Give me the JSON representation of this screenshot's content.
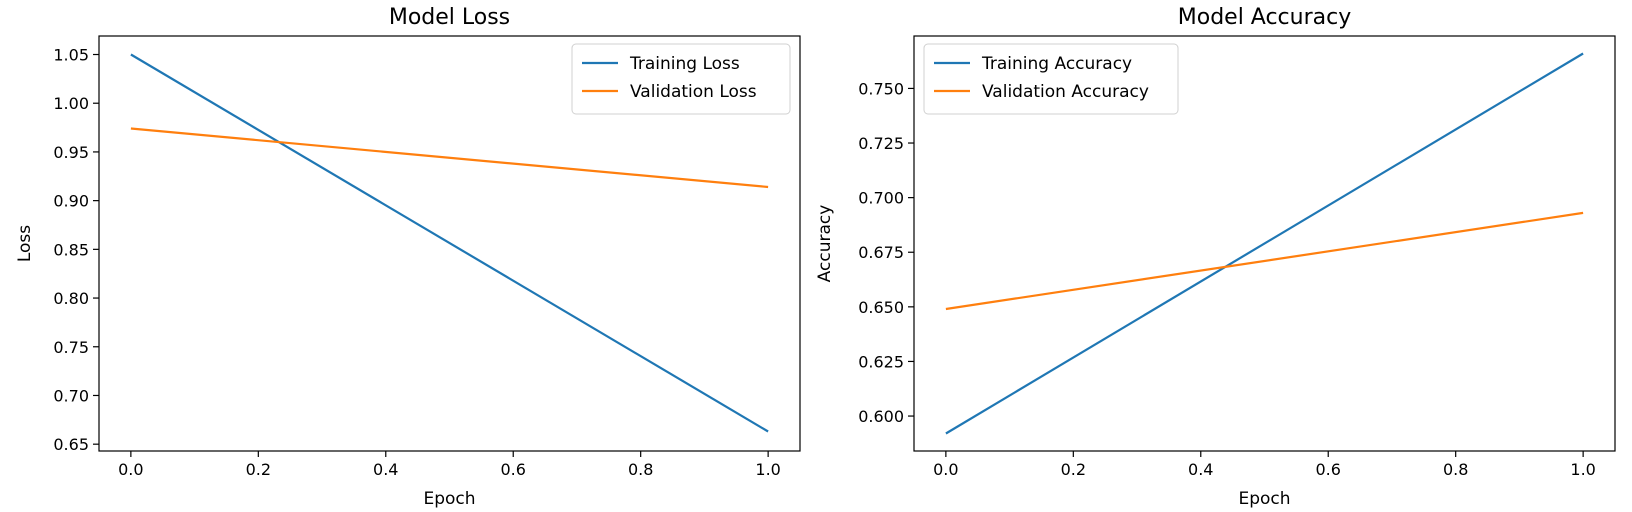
{
  "colors": {
    "series1": "#1f77b4",
    "series2": "#ff7f0e",
    "axes": "#000000",
    "legend_border": "#d0d0d0"
  },
  "chart_data": [
    {
      "type": "line",
      "title": "Model Loss",
      "xlabel": "Epoch",
      "ylabel": "Loss",
      "xlim": [
        -0.05,
        1.05
      ],
      "ylim": [
        0.643,
        1.069
      ],
      "xticks": [
        "0.0",
        "0.2",
        "0.4",
        "0.6",
        "0.8",
        "1.0"
      ],
      "yticks": [
        "0.65",
        "0.70",
        "0.75",
        "0.80",
        "0.85",
        "0.90",
        "0.95",
        "1.00",
        "1.05"
      ],
      "legend": "top-right",
      "grid": false,
      "series": [
        {
          "name": "Training Loss",
          "x": [
            0,
            1
          ],
          "y": [
            1.05,
            0.663
          ]
        },
        {
          "name": "Validation Loss",
          "x": [
            0,
            1
          ],
          "y": [
            0.974,
            0.914
          ]
        }
      ]
    },
    {
      "type": "line",
      "title": "Model Accuracy",
      "xlabel": "Epoch",
      "ylabel": "Accuracy",
      "xlim": [
        -0.05,
        1.05
      ],
      "ylim": [
        0.584,
        0.774
      ],
      "xticks": [
        "0.0",
        "0.2",
        "0.4",
        "0.6",
        "0.8",
        "1.0"
      ],
      "yticks": [
        "0.600",
        "0.625",
        "0.650",
        "0.675",
        "0.700",
        "0.725",
        "0.750"
      ],
      "legend": "top-left",
      "grid": false,
      "series": [
        {
          "name": "Training Accuracy",
          "x": [
            0,
            1
          ],
          "y": [
            0.592,
            0.766
          ]
        },
        {
          "name": "Validation Accuracy",
          "x": [
            0,
            1
          ],
          "y": [
            0.649,
            0.693
          ]
        }
      ]
    }
  ]
}
